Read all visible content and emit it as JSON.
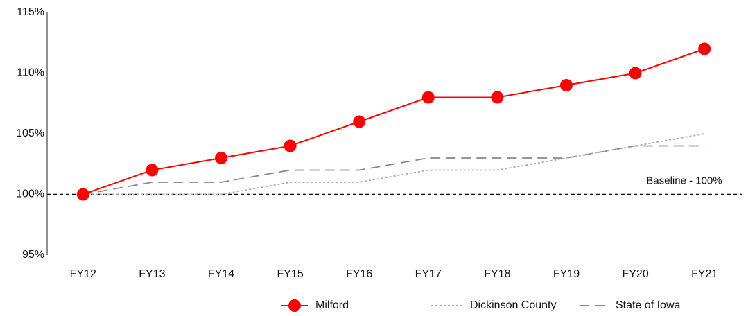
{
  "chart_data": {
    "type": "line",
    "categories": [
      "FY12",
      "FY13",
      "FY14",
      "FY15",
      "FY16",
      "FY17",
      "FY18",
      "FY19",
      "FY20",
      "FY21"
    ],
    "series": [
      {
        "name": "Milford",
        "color": "#ff0000",
        "style": "solid",
        "marker": true,
        "values": [
          100,
          102,
          103,
          104,
          106,
          108,
          108,
          109,
          110,
          112
        ]
      },
      {
        "name": "Dickinson County",
        "color": "#aaaaaa",
        "style": "dotted",
        "marker": false,
        "values": [
          100,
          100,
          100,
          101,
          101,
          102,
          102,
          103,
          104,
          105
        ]
      },
      {
        "name": "State of Iowa",
        "color": "#888888",
        "style": "dashed",
        "marker": false,
        "values": [
          100,
          101,
          101,
          102,
          102,
          103,
          103,
          103,
          104,
          104
        ]
      }
    ],
    "ylim": [
      95,
      115
    ],
    "yticks": [
      {
        "value": 95,
        "label": "95%"
      },
      {
        "value": 100,
        "label": "100%"
      },
      {
        "value": 105,
        "label": "105%"
      },
      {
        "value": 110,
        "label": "110%"
      },
      {
        "value": 115,
        "label": "115%"
      }
    ],
    "grid": false,
    "baseline": {
      "value": 100,
      "label": "Baseline - 100%"
    },
    "legend": "bottom"
  }
}
